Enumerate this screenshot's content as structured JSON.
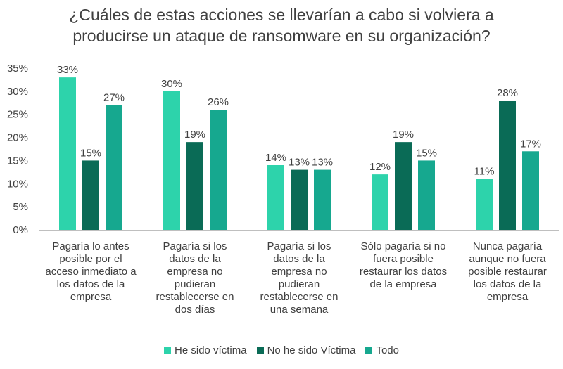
{
  "colors": {
    "he_sido": "#2dd3ab",
    "no_he_sido": "#0a6b56",
    "todo": "#16a88f",
    "text": "#404040",
    "axis": "#bfbfbf"
  },
  "chart_data": {
    "type": "bar",
    "title_lines": [
      "¿Cuáles de estas acciones se llevarían a cabo si volviera a",
      "producirse un ataque de ransomware en su organización?"
    ],
    "categories": [
      [
        "Pagaría lo antes",
        "posible por el",
        "acceso inmediato a",
        "los datos de la",
        "empresa"
      ],
      [
        "Pagaría si los",
        "datos de la",
        "empresa no",
        "pudieran",
        "restablecerse en",
        "dos días"
      ],
      [
        "Pagaría si los",
        "datos de la",
        "empresa no",
        "pudieran",
        "restablecerse en",
        "una semana"
      ],
      [
        "Sólo pagaría si no",
        "fuera posible",
        "restaurar los datos",
        "de la empresa"
      ],
      [
        "Nunca pagaría",
        "aunque no fuera",
        "posible restaurar",
        "los datos de la",
        "empresa"
      ]
    ],
    "series": [
      {
        "name": "He sido víctima",
        "values": [
          33,
          30,
          14,
          12,
          11
        ],
        "labels": [
          "33%",
          "30%",
          "14%",
          "12%",
          "11%"
        ]
      },
      {
        "name": "No he sido Víctima",
        "values": [
          15,
          19,
          13,
          19,
          28
        ],
        "labels": [
          "15%",
          "19%",
          "13%",
          "19%",
          "28%"
        ]
      },
      {
        "name": "Todo",
        "values": [
          27,
          26,
          13,
          15,
          17
        ],
        "labels": [
          "27%",
          "26%",
          "13%",
          "15%",
          "17%"
        ]
      }
    ],
    "yticks": [
      "0%",
      "5%",
      "10%",
      "15%",
      "20%",
      "25%",
      "30%",
      "35%"
    ],
    "ylim": [
      0,
      35
    ],
    "grid": false,
    "legend_position": "bottom"
  }
}
